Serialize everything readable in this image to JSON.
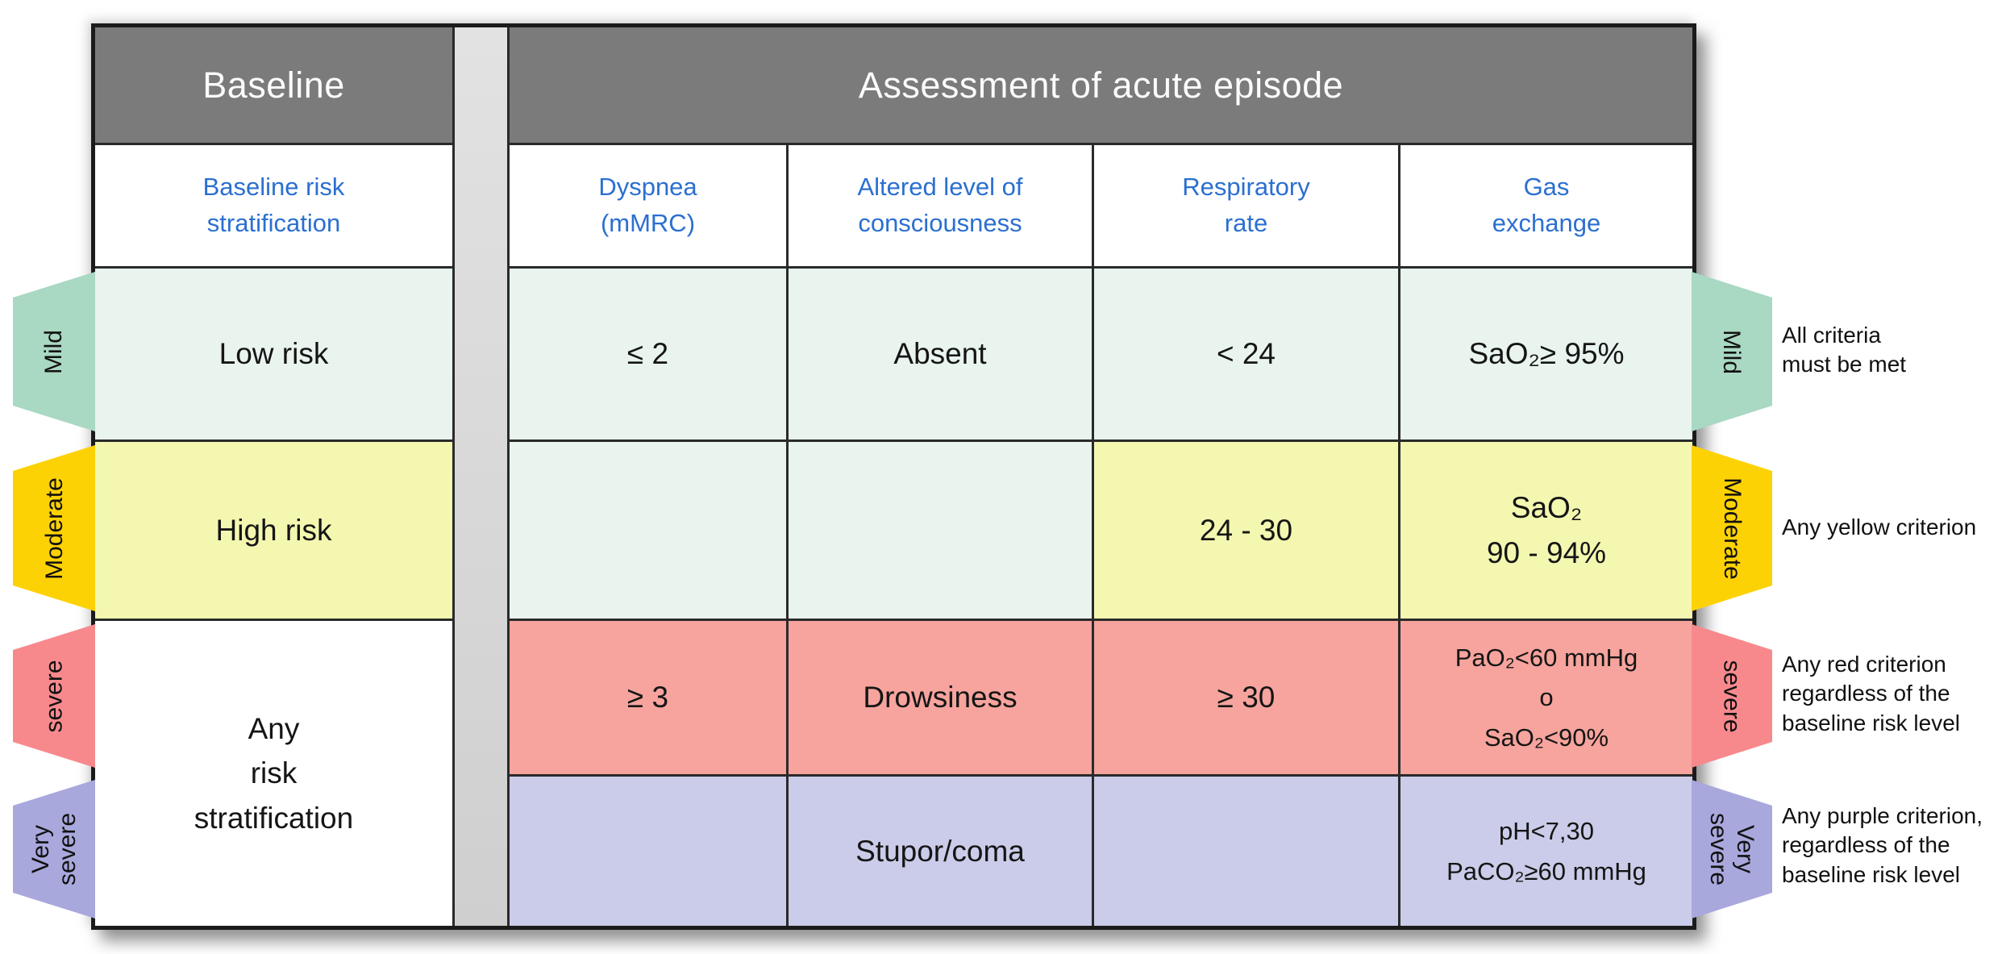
{
  "header": {
    "baseline": "Baseline",
    "assessment": "Assessment of acute episode"
  },
  "columns": {
    "baseline_risk": "Baseline risk\nstratification",
    "dyspnea": "Dyspnea\n(mMRC)",
    "consciousness": "Altered level of\nconsciousness",
    "respiratory": "Respiratory\nrate",
    "gas": "Gas\nexchange"
  },
  "rows": [
    {
      "severity": "Mild",
      "baseline": "Low risk",
      "dyspnea": "≤ 2",
      "consciousness": "Absent",
      "respiratory": "< 24",
      "gas": "SaO₂≥ 95%"
    },
    {
      "severity": "Moderate",
      "baseline": "High risk",
      "dyspnea": "",
      "consciousness": "",
      "respiratory": "24 - 30",
      "gas": "SaO₂\n90 - 94%"
    },
    {
      "severity": "severe",
      "baseline": "Any\nrisk\nstratification",
      "dyspnea": "≥ 3",
      "consciousness": "Drowsiness",
      "respiratory": "≥ 30",
      "gas": "PaO₂<60  mmHg\no\nSaO₂<90%"
    },
    {
      "severity": "Very\nsevere",
      "baseline": "",
      "dyspnea": "",
      "consciousness": "Stupor/coma",
      "respiratory": "",
      "gas": "pH<7,30\nPaCO₂≥60  mmHg"
    }
  ],
  "annotations": [
    "All criteria\nmust be met",
    "Any yellow criterion",
    "Any red criterion\nregardless of the\nbaseline risk level",
    "Any purple criterion,\nregardless of the\nbaseline risk level"
  ],
  "colors": {
    "header_grey": "#7b7b7b",
    "spacer_grey": "#d8d8d8",
    "mild_cell": "#e9f4ef",
    "mild_tab": "#a9d8c3",
    "moderate_cell": "#f3f7b0",
    "moderate_tab": "#fdd205",
    "severe_cell": "#f6a49d",
    "severe_tab": "#f7898d",
    "very_severe_cell": "#cbcce9",
    "very_severe_tab": "#a9a8dd",
    "column_header_text": "#2b6fd0",
    "header_text": "#fbfbfb"
  }
}
